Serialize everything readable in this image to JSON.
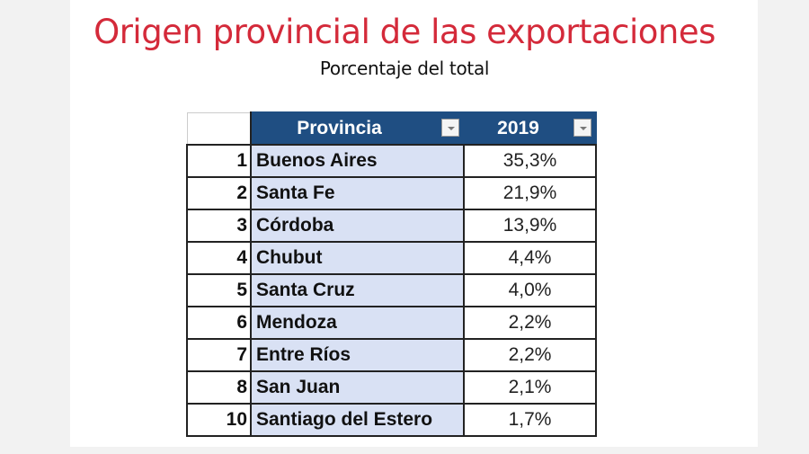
{
  "chart_data": {
    "type": "table",
    "title": "Origen provincial de las exportaciones",
    "subtitle": "Porcentaje del total",
    "columns": [
      "Provincia",
      "2019"
    ],
    "rows": [
      {
        "rank": "1",
        "provincia": "Buenos Aires",
        "value": "35,3%"
      },
      {
        "rank": "2",
        "provincia": "Santa Fe",
        "value": "21,9%"
      },
      {
        "rank": "3",
        "provincia": "Córdoba",
        "value": "13,9%"
      },
      {
        "rank": "4",
        "provincia": "Chubut",
        "value": "4,4%"
      },
      {
        "rank": "5",
        "provincia": "Santa Cruz",
        "value": "4,0%"
      },
      {
        "rank": "6",
        "provincia": "Mendoza",
        "value": "2,2%"
      },
      {
        "rank": "7",
        "provincia": "Entre Ríos",
        "value": "2,2%"
      },
      {
        "rank": "8",
        "provincia": "San Juan",
        "value": "2,1%"
      },
      {
        "rank": "10",
        "provincia": "Santiago del Estero",
        "value": "1,7%"
      }
    ],
    "colors": {
      "title": "#d42a3a",
      "header": "#1f4e82",
      "province_fill": "#d9e1f4"
    }
  }
}
